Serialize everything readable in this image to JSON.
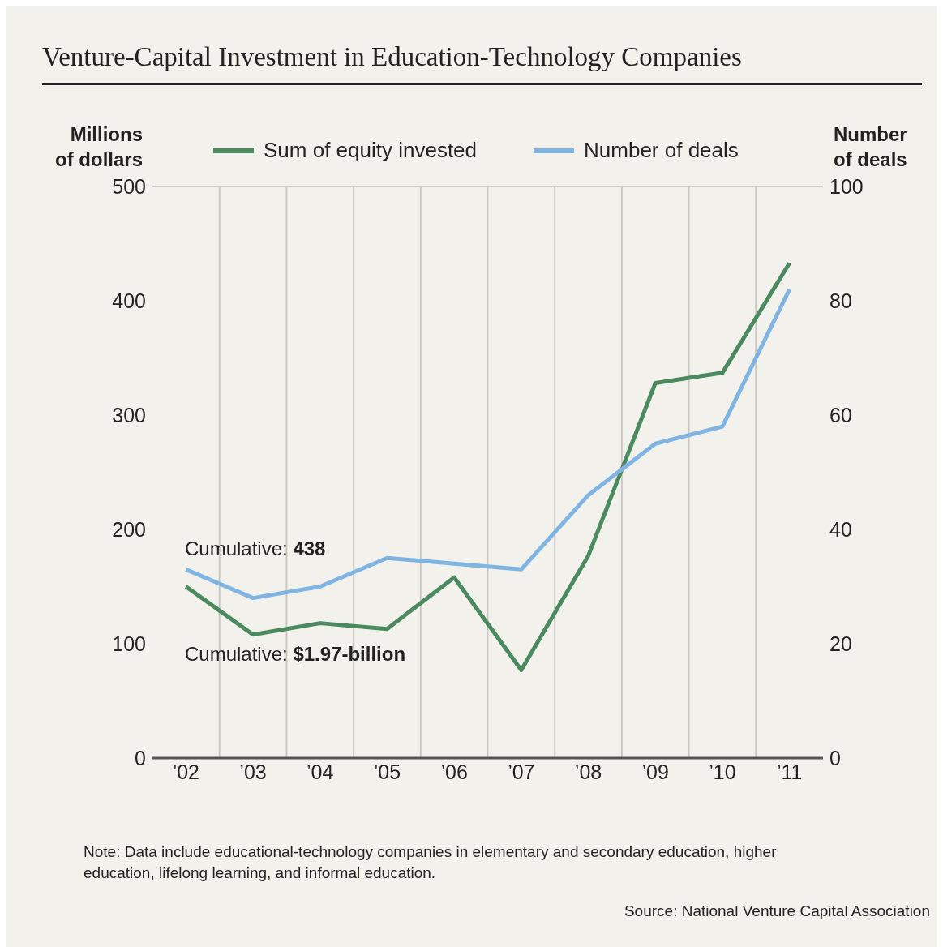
{
  "chart_data": {
    "type": "line",
    "title": "Venture-Capital Investment in Education-Technology Companies",
    "ylabel": "Millions\nof dollars",
    "y2label": "Number\nof deals",
    "categories": [
      "’02",
      "’03",
      "’04",
      "’05",
      "’06",
      "’07",
      "’08",
      "’09",
      "’10",
      "’11"
    ],
    "series": [
      {
        "name": "Sum of equity invested",
        "color": "#4a8a5e",
        "values": [
          150,
          108,
          118,
          113,
          158,
          77,
          177,
          328,
          337,
          433
        ]
      },
      {
        "name": "Number of deals",
        "color": "#80b4e2",
        "axis": "y2",
        "values": [
          33,
          28,
          30,
          35,
          34,
          33,
          46,
          55,
          58,
          82
        ]
      }
    ],
    "ylim": [
      0,
      500
    ],
    "yticks": [
      0,
      100,
      200,
      300,
      400,
      500
    ],
    "y2lim": [
      0,
      100
    ],
    "y2ticks": [
      0,
      20,
      40,
      60,
      80,
      100
    ],
    "grid": true,
    "legend": "top",
    "marker": "none",
    "line_style": "solid",
    "annotations": [
      "Cumulative: 438",
      "Cumulative: $1.97-billion",
      "Note: Data include educational-technology companies in elementary and secondary education, higher education, lifelong learning, and informal education.",
      "Source: National Venture Capital Association"
    ]
  }
}
